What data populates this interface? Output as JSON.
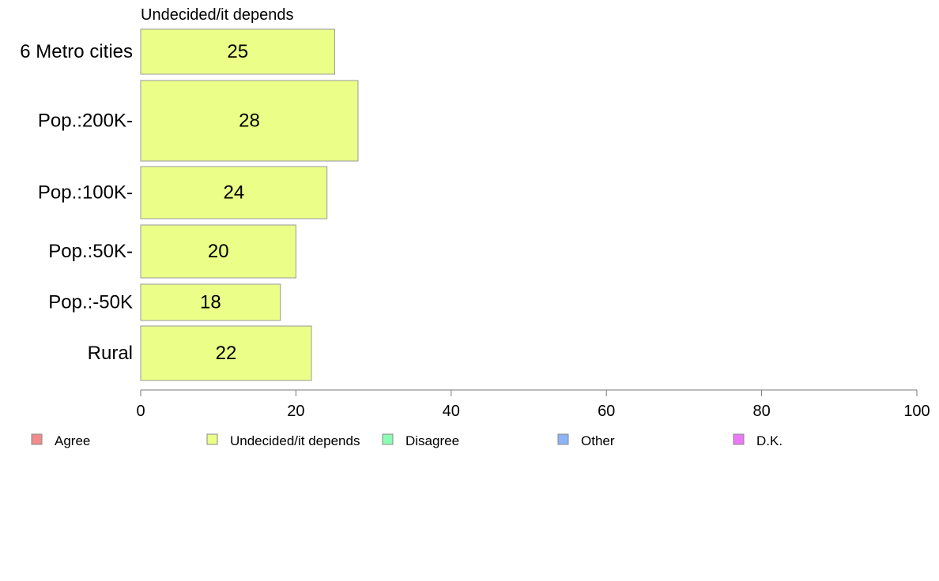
{
  "chart_data": {
    "type": "bar",
    "orientation": "horizontal",
    "title": "Undecided/it depends",
    "categories": [
      "6 Metro cities",
      "Pop.:200K-",
      "Pop.:100K-",
      "Pop.:50K-",
      "Pop.:-50K",
      "Rural"
    ],
    "series": [
      {
        "name": "Undecided/it depends",
        "values": [
          25,
          28,
          24,
          20,
          18,
          22
        ],
        "color": "#EBFF88"
      }
    ],
    "data_labels": [
      "25",
      "28",
      "24",
      "20",
      "18",
      "22"
    ],
    "xlim": [
      0,
      100
    ],
    "x_ticks": [
      0,
      20,
      40,
      60,
      80,
      100
    ],
    "x_tick_labels": [
      "0",
      "20",
      "40",
      "60",
      "80",
      "100"
    ],
    "grid": false,
    "legend_position": "bottom",
    "legend": [
      {
        "label": "Agree",
        "color": "#F08C8C"
      },
      {
        "label": "Undecided/it depends",
        "color": "#EBFF88"
      },
      {
        "label": "Disagree",
        "color": "#8CFFB4"
      },
      {
        "label": "Other",
        "color": "#8CB4F5"
      },
      {
        "label": "D.K.",
        "color": "#EB78F5"
      }
    ]
  }
}
